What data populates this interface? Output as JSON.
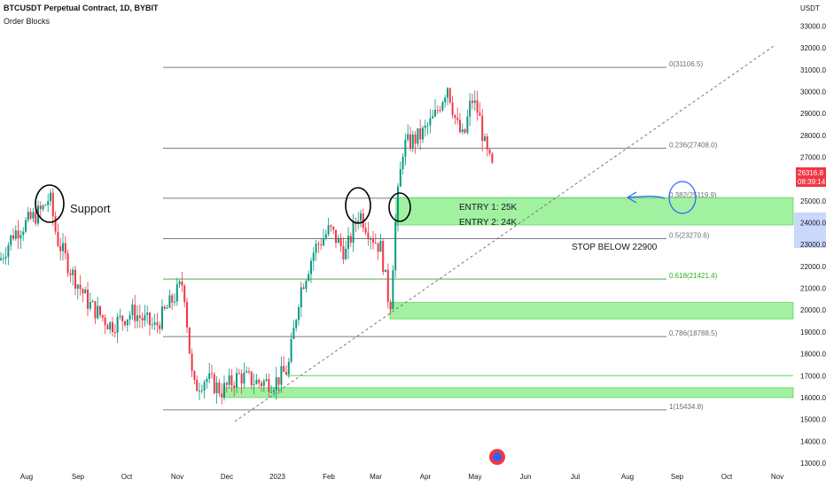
{
  "header": {
    "title": "BTCUSDT Perpetual Contract, 1D, BYBIT",
    "indicator": "Order Blocks",
    "unit": "USDT"
  },
  "chart_data": {
    "type": "candlestick",
    "ylim": [
      13000,
      33500
    ],
    "y_ticks": [
      "13000.0",
      "14000.0",
      "15000.0",
      "16000.0",
      "17000.0",
      "18000.0",
      "19000.0",
      "20000.0",
      "21000.0",
      "22000.0",
      "23000.0",
      "24000.0",
      "25000.0",
      "26000.0",
      "27000.0",
      "28000.0",
      "29000.0",
      "30000.0",
      "31000.0",
      "32000.0",
      "33000.0"
    ],
    "x_ticks": [
      "Aug",
      "Sep",
      "Oct",
      "Nov",
      "Dec",
      "2023",
      "Feb",
      "Mar",
      "Apr",
      "May",
      "Jun",
      "Jul",
      "Aug",
      "Sep",
      "Oct",
      "Nov"
    ],
    "current_price": "26316.8",
    "countdown": "08:39:14",
    "fib_levels": [
      {
        "label": "0(31106.5)",
        "value": 31106.5
      },
      {
        "label": "0.236(27408.0)",
        "value": 27408.0
      },
      {
        "label": "0.382(25119.9)",
        "value": 25119.9
      },
      {
        "label": "0.5(23270.6)",
        "value": 23270.6
      },
      {
        "label": "0.618(21421.4)",
        "value": 21421.4
      },
      {
        "label": "0.786(18788.5)",
        "value": 18788.5
      },
      {
        "label": "1(15434.8)",
        "value": 15434.8
      }
    ],
    "order_blocks": [
      {
        "from": 23900,
        "to": 25150
      },
      {
        "from": 19600,
        "to": 20350
      },
      {
        "from": 16000,
        "to": 16450
      }
    ],
    "annotations": {
      "support": "Support",
      "entry1": "ENTRY 1: 25K",
      "entry2": "ENTRY 2: 24K",
      "stop": "STOP BELOW 22900"
    },
    "colors": {
      "up": "#089981",
      "down": "#f23645",
      "order_block": "#90ee90",
      "fib_line": "#787b86",
      "golden_line": "#4caf50",
      "price_tag": "#f23645"
    }
  }
}
